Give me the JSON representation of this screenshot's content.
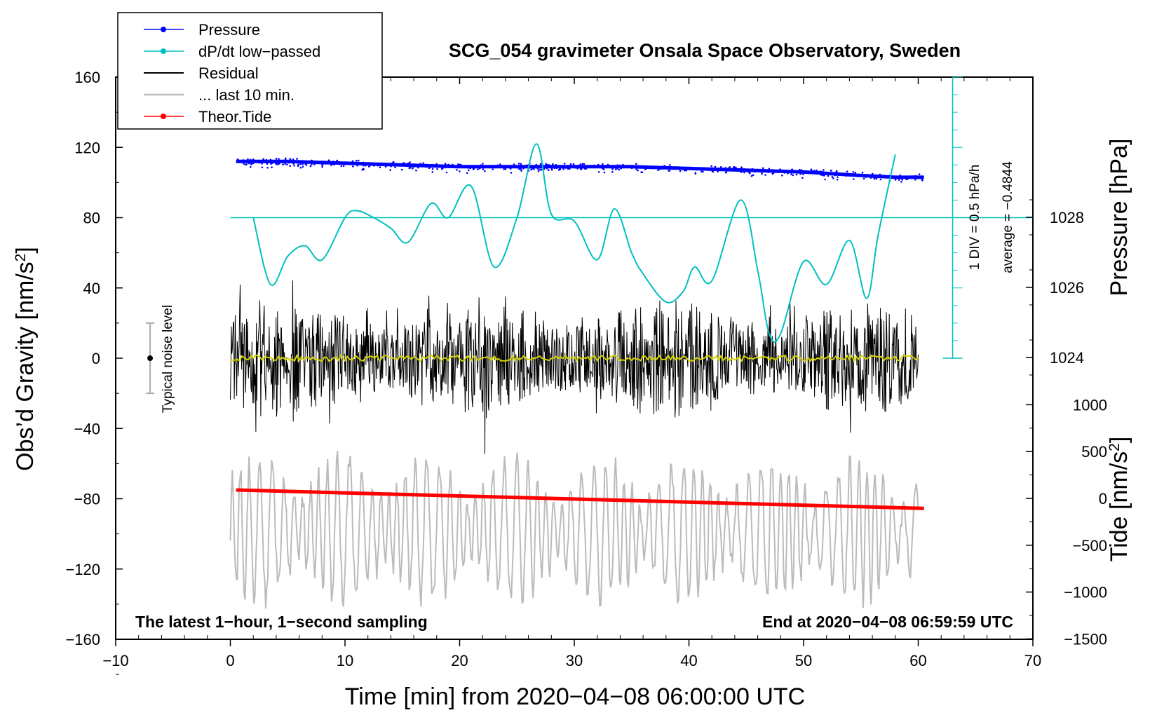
{
  "chart_data": {
    "type": "line",
    "title": "SCG_054 gravimeter Onsala Space Observatory, Sweden",
    "xlabel": "Time [min] from 2020−04−08 06:00:00 UTC",
    "ylabel_left": "Obs’d Gravity [nm/s",
    "ylabel_left_sup": "2",
    "ylabel_left_end": "]",
    "ylabel_pressure": "Pressure [hPa]",
    "ylabel_tide": "Tide [nm/s",
    "ylabel_tide_sup": "2",
    "ylabel_tide_end": "]",
    "xlim": [
      -10,
      70
    ],
    "ylim": [
      -160,
      160
    ],
    "x_ticks": [
      -10,
      0,
      10,
      20,
      30,
      40,
      50,
      60,
      70
    ],
    "x_tick_labels": [
      "−10",
      "0",
      "10",
      "20",
      "30",
      "40",
      "50",
      "60",
      "70"
    ],
    "y_ticks": [
      -160,
      -120,
      -80,
      -40,
      0,
      40,
      80,
      120,
      160
    ],
    "y_tick_labels": [
      "−160",
      "−120",
      "−80",
      "−40",
      "0",
      "40",
      "80",
      "120",
      "160"
    ],
    "pressure_ticks": [
      1024,
      1026,
      1028
    ],
    "pressure_tick_labels": [
      "1024",
      "1026",
      "1028"
    ],
    "tide_ticks": [
      1000,
      500,
      0,
      -500,
      -1000,
      -1500
    ],
    "tide_tick_labels": [
      "1000",
      "500",
      "0",
      "−500",
      "−1000",
      "−1500"
    ],
    "legend": [
      {
        "label": "Pressure",
        "color": "#0000ff",
        "marker": true
      },
      {
        "label": "dP/dt low−passed",
        "color": "#00c0c0",
        "marker": true
      },
      {
        "label": "Residual",
        "color": "#000000",
        "marker": false
      },
      {
        "label": "... last 10 min.",
        "color": "#bbbbbb",
        "marker": false
      },
      {
        "label": "Theor.Tide",
        "color": "#ff0000",
        "marker": true
      }
    ],
    "series": [
      {
        "name": "Pressure",
        "color": "#0000ff",
        "axis": "left_equiv",
        "x": [
          0.5,
          5,
          10,
          15,
          20,
          25,
          30,
          35,
          40,
          45,
          50,
          55,
          58,
          60.5
        ],
        "values": [
          112,
          112,
          111,
          110,
          109,
          109,
          109,
          109,
          108,
          107,
          106,
          104,
          103,
          103
        ]
      },
      {
        "name": "dP/dt low−passed",
        "color": "#00c0c0",
        "axis": "left_equiv",
        "x": [
          2,
          3.5,
          5,
          6.5,
          8,
          10,
          11,
          12.5,
          14,
          15.5,
          17.5,
          19,
          21,
          23,
          25,
          26.7,
          28,
          30,
          32,
          33.5,
          35,
          36,
          38,
          39.5,
          40.5,
          42,
          44.5,
          46,
          47,
          48,
          50,
          52,
          54,
          55.5,
          56.5,
          58
        ],
        "values": [
          80,
          42,
          58,
          64,
          56,
          80,
          84,
          80,
          74,
          66,
          88,
          80,
          98,
          52,
          80,
          122,
          82,
          78,
          56,
          85,
          60,
          48,
          32,
          38,
          52,
          44,
          90,
          50,
          14,
          14,
          55,
          42,
          67,
          34,
          70,
          116
        ]
      },
      {
        "name": "Residual",
        "color": "#000000",
        "x": [
          0,
          60
        ],
        "values": [
          0,
          0
        ],
        "envelope": 45
      },
      {
        "name": "Residual (smoothed)",
        "color": "#d4d400",
        "x": [
          0,
          60
        ],
        "values": [
          0,
          0
        ]
      },
      {
        "name": "... last 10 min.",
        "color": "#bbbbbb",
        "x": [
          0,
          60
        ],
        "values": [
          -98,
          -98
        ],
        "envelope": 40
      },
      {
        "name": "Theor.Tide",
        "color": "#ff0000",
        "axis": "left_equiv",
        "x": [
          0.5,
          60.5
        ],
        "values": [
          -75,
          -85.5
        ]
      }
    ],
    "baseline_value": 80,
    "noise_level": {
      "x": -7,
      "center": 0,
      "low": -20,
      "high": 20,
      "label": "Typical noise level"
    },
    "dpdt_scale": {
      "label1": "1 DIV = 0.5 hPa/h",
      "label2": "average = −0.4844"
    },
    "note_left": "The latest 1−hour, 1−second sampling",
    "note_right": "End at 2020−04−08 06:59:59 UTC"
  }
}
